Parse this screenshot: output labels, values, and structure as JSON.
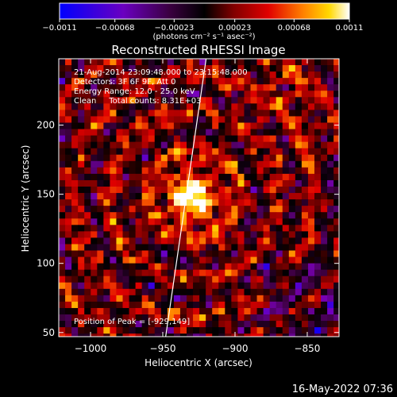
{
  "colorbar": {
    "ticks": [
      "-0.0011",
      "-0.00068",
      "-0.00023",
      "0.00023",
      "0.00068",
      "0.0011"
    ],
    "range": [
      -0.0011,
      0.0011
    ],
    "unit_label": "(photons cm⁻² s⁻¹ asec⁻²)"
  },
  "chart_data": {
    "type": "heatmap",
    "title": "Reconstructed RHESSI Image",
    "xlabel": "Heliocentric X (arcsec)",
    "ylabel": "Heliocentric Y (arcsec)",
    "xlim": [
      -1022,
      -828
    ],
    "ylim": [
      47,
      248
    ],
    "x_ticks": [
      -1000,
      -950,
      -900,
      -850
    ],
    "y_ticks": [
      50,
      100,
      150,
      200
    ],
    "x_tick_labels": [
      "−1000",
      "−950",
      "−900",
      "−850"
    ],
    "y_tick_labels": [
      "50",
      "100",
      "150",
      "200"
    ],
    "limb_line": {
      "x_bottom": -948,
      "x_top": -920
    },
    "peak_position": [
      -929,
      149
    ],
    "colormap": [
      "#0000ff",
      "#7a00b8",
      "#3a003a",
      "#000000",
      "#800000",
      "#e00000",
      "#ff8000",
      "#ffd800",
      "#ffffff"
    ]
  },
  "annotations": {
    "line1": "21-Aug-2014 23:09:48.000 to 23:15:48.000",
    "line2": "Detectors: 3F 6F 9F, Att 0",
    "line3": "Energy Range: 12.0 - 25.0 keV",
    "line4": "Clean     Total counts: 8.31E+03",
    "peak": "Position of Peak = [-929,149]"
  },
  "timestamp": "16-May-2022 07:36"
}
